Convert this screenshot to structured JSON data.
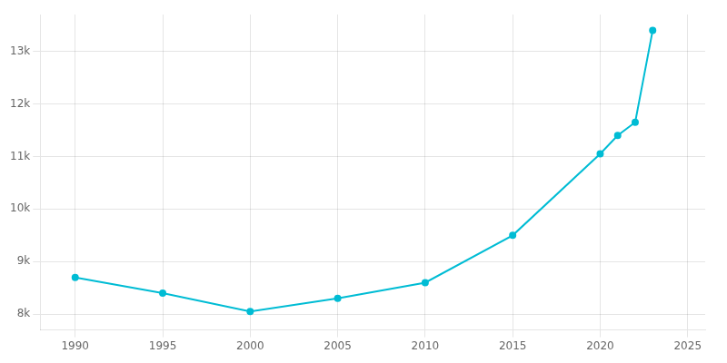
{
  "chart_data": {
    "type": "line",
    "x": [
      1990,
      1995,
      2000,
      2005,
      2010,
      2015,
      2020,
      2021,
      2022,
      2023
    ],
    "values": [
      8700,
      8400,
      8050,
      8300,
      8600,
      9500,
      11050,
      11400,
      11650,
      13400
    ],
    "color": "#00BCD4",
    "marker": "circle",
    "xlim": [
      1988,
      2026
    ],
    "xticks": [
      1990,
      1995,
      2000,
      2005,
      2010,
      2015,
      2020,
      2025
    ],
    "ylim": [
      7700,
      13700
    ],
    "yticks": [
      {
        "value": 8000,
        "label": "8k"
      },
      {
        "value": 9000,
        "label": "9k"
      },
      {
        "value": 10000,
        "label": "10k"
      },
      {
        "value": 11000,
        "label": "11k"
      },
      {
        "value": 12000,
        "label": "12k"
      },
      {
        "value": 13000,
        "label": "13k"
      }
    ],
    "grid": true
  }
}
